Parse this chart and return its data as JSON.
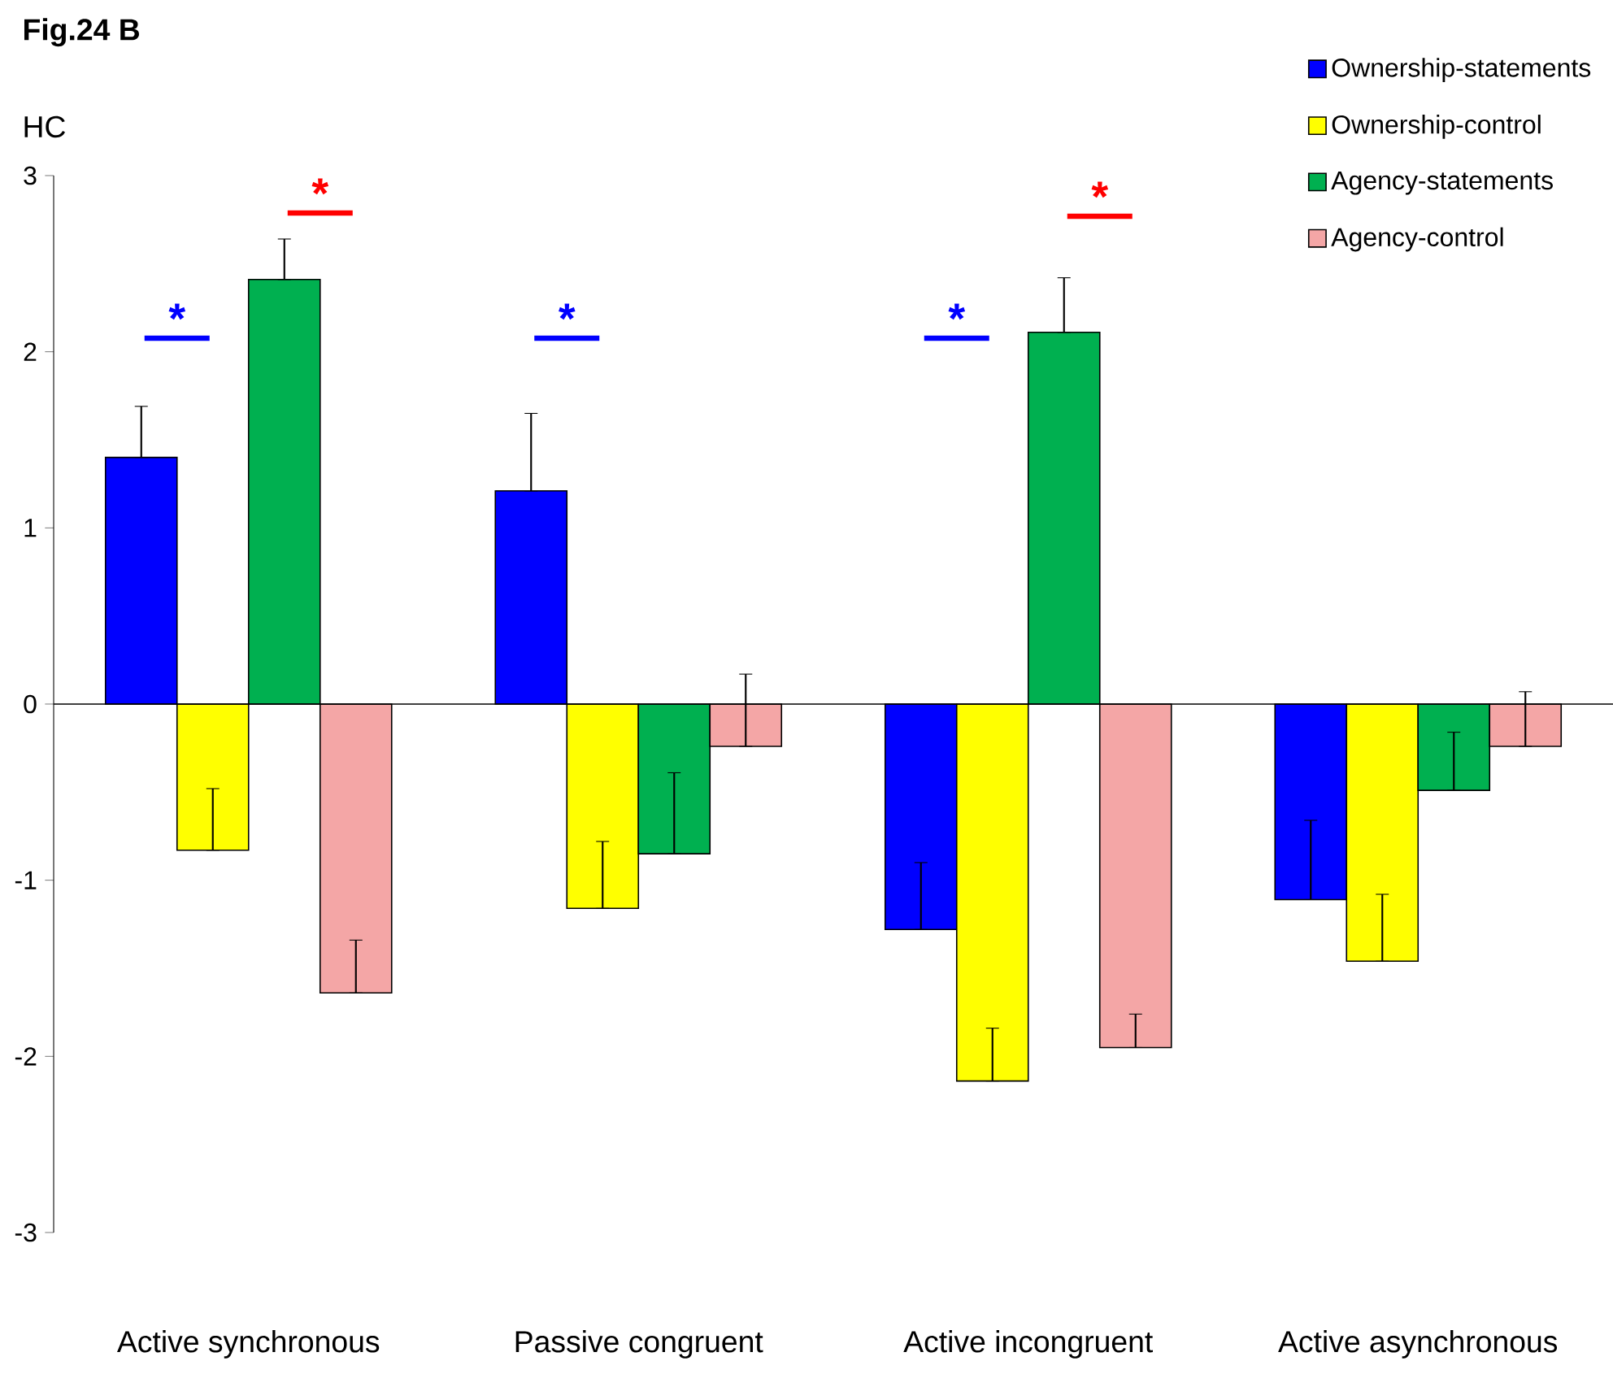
{
  "chart_data": {
    "type": "bar",
    "title": "Fig.24 B",
    "ylabel": "HC",
    "categories": [
      "Active synchronous",
      "Passive congruent",
      "Active incongruent",
      "Active asynchronous"
    ],
    "series": [
      {
        "name": "Ownership-statements",
        "color": "#0000ff",
        "values": [
          1.4,
          1.21,
          -1.28,
          -1.11
        ],
        "errors": [
          [
            1.4,
            1.69
          ],
          [
            1.21,
            1.65
          ],
          [
            -1.28,
            -0.9
          ],
          [
            -1.11,
            -0.66
          ]
        ]
      },
      {
        "name": "Ownership-control",
        "color": "#ffff00",
        "values": [
          -0.83,
          -1.16,
          -2.14,
          -1.46
        ],
        "errors": [
          [
            -0.83,
            -0.48
          ],
          [
            -1.16,
            -0.78
          ],
          [
            -2.14,
            -1.84
          ],
          [
            -1.46,
            -1.08
          ]
        ]
      },
      {
        "name": "Agency-statements",
        "color": "#00b050",
        "values": [
          2.41,
          -0.85,
          2.11,
          -0.49
        ],
        "errors": [
          [
            2.41,
            2.64
          ],
          [
            -0.85,
            -0.39
          ],
          [
            2.11,
            2.42
          ],
          [
            -0.49,
            -0.16
          ]
        ]
      },
      {
        "name": "Agency-control",
        "color": "#f4a6a6",
        "values": [
          -1.64,
          -0.24,
          -1.95,
          -0.24
        ],
        "errors": [
          [
            -1.64,
            -1.34
          ],
          [
            -0.24,
            0.17
          ],
          [
            -1.95,
            -1.76
          ],
          [
            -0.24,
            0.07
          ]
        ]
      }
    ],
    "ylim": [
      -3,
      3
    ],
    "yticks": [
      -3,
      -2,
      -1,
      0,
      1,
      2,
      3
    ],
    "legend": "top right",
    "annotations": [
      "*",
      "*",
      "*",
      "*",
      "*"
    ]
  }
}
